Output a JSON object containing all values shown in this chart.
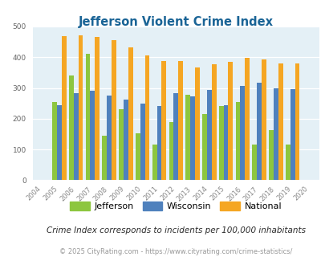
{
  "title": "Jefferson Violent Crime Index",
  "title_color": "#1a6496",
  "years": [
    "2004",
    "2005",
    "2006",
    "2007",
    "2008",
    "2009",
    "2010",
    "2011",
    "2012",
    "2013",
    "2014",
    "2015",
    "2016",
    "2017",
    "2018",
    "2019",
    "2020"
  ],
  "jefferson": [
    null,
    255,
    341,
    410,
    145,
    230,
    153,
    115,
    190,
    278,
    216,
    241,
    255,
    115,
    163,
    115,
    null
  ],
  "wisconsin": [
    null,
    244,
    284,
    292,
    275,
    261,
    250,
    241,
    282,
    272,
    293,
    243,
    306,
    317,
    299,
    295,
    null
  ],
  "national": [
    null,
    469,
    472,
    467,
    455,
    432,
    405,
    388,
    388,
    366,
    376,
    384,
    397,
    394,
    381,
    380,
    null
  ],
  "jefferson_color": "#8dc63f",
  "wisconsin_color": "#4f81bd",
  "national_color": "#f5a623",
  "plot_bg": "#e4f0f6",
  "ylim": [
    0,
    500
  ],
  "yticks": [
    0,
    100,
    200,
    300,
    400,
    500
  ],
  "note": "Crime Index corresponds to incidents per 100,000 inhabitants",
  "copyright": "© 2025 CityRating.com - https://www.cityrating.com/crime-statistics/",
  "note_color": "#2c2c2c",
  "copyright_color": "#999999",
  "legend_labels": [
    "Jefferson",
    "Wisconsin",
    "National"
  ]
}
